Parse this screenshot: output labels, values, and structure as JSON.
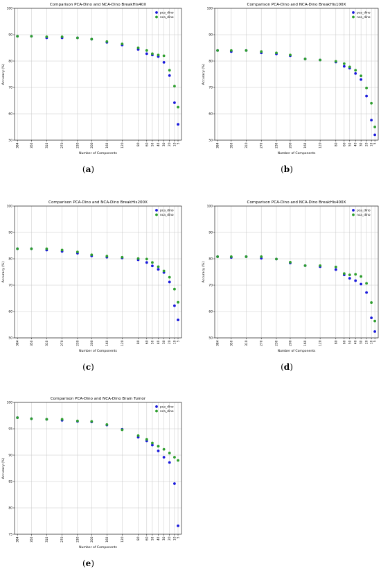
{
  "colors": {
    "pca": "#1a1adb",
    "nca": "#2e9e2e",
    "grid": "#c8c8c8",
    "axis": "#000000"
  },
  "legend_labels": [
    "pca_dino",
    "nca_dino"
  ],
  "chart_data": [
    {
      "type": "scatter",
      "title": "Comparison PCA-Dino and NCA-Dino BreakHis40X",
      "xlabel": "Number of Components",
      "ylabel": "Accuracy (%)",
      "caption_label": "a",
      "ylim": [
        50,
        100
      ],
      "yticks": [
        50,
        60,
        70,
        80,
        90,
        100
      ],
      "x": [
        "384",
        "350",
        "310",
        "270",
        "230",
        "200",
        "160",
        "120",
        "80",
        "60",
        "50",
        "40",
        "30",
        "20",
        "10",
        "5"
      ],
      "grid": true,
      "legend": "top-right",
      "series": [
        {
          "name": "pca_dino",
          "values": [
            89.4,
            89.4,
            88.8,
            88.8,
            88.8,
            88.3,
            87.1,
            86.1,
            84.4,
            82.8,
            82.3,
            81.7,
            79.5,
            74.5,
            64.2,
            56.0
          ]
        },
        {
          "name": "nca_dino",
          "values": [
            89.4,
            89.4,
            89.2,
            89.2,
            88.8,
            88.3,
            87.4,
            86.5,
            85.0,
            84.0,
            82.8,
            82.3,
            82.0,
            76.5,
            70.5,
            62.5
          ]
        }
      ]
    },
    {
      "type": "scatter",
      "title": "Comparison PCA-Dino and NCA-Dino BreakHis100X",
      "xlabel": "Number of Components",
      "ylabel": "Accuracy (%)",
      "caption_label": "b",
      "ylim": [
        50,
        100
      ],
      "yticks": [
        50,
        60,
        70,
        80,
        90,
        100
      ],
      "x": [
        "384",
        "350",
        "310",
        "270",
        "230",
        "200",
        "160",
        "120",
        "80",
        "60",
        "50",
        "40",
        "30",
        "20",
        "10",
        "5"
      ],
      "grid": true,
      "legend": "top-right",
      "series": [
        {
          "name": "pca_dino",
          "values": [
            84.0,
            83.6,
            84.0,
            83.1,
            82.7,
            82.0,
            80.8,
            80.4,
            79.6,
            78.0,
            77.3,
            75.3,
            73.0,
            66.7,
            57.6,
            52.0
          ]
        },
        {
          "name": "nca_dino",
          "values": [
            84.0,
            84.0,
            84.0,
            83.6,
            83.1,
            82.3,
            80.8,
            80.4,
            79.9,
            79.0,
            77.8,
            76.5,
            74.4,
            69.8,
            64.0,
            55.0
          ]
        }
      ]
    },
    {
      "type": "scatter",
      "title": "Comparison PCA-Dino and NCA-Dino BreakHis200X",
      "xlabel": "Number of Components",
      "ylabel": "Accuracy (%)",
      "caption_label": "c",
      "ylim": [
        50,
        100
      ],
      "yticks": [
        50,
        60,
        70,
        80,
        90,
        100
      ],
      "x": [
        "384",
        "350",
        "310",
        "270",
        "230",
        "200",
        "160",
        "120",
        "80",
        "60",
        "50",
        "40",
        "30",
        "20",
        "10",
        "5"
      ],
      "grid": true,
      "legend": "top-right",
      "series": [
        {
          "name": "pca_dino",
          "values": [
            83.8,
            83.8,
            83.3,
            82.8,
            82.1,
            81.1,
            80.6,
            80.3,
            79.6,
            78.6,
            77.3,
            76.0,
            74.8,
            71.2,
            62.2,
            56.8
          ]
        },
        {
          "name": "nca_dino",
          "values": [
            83.8,
            83.8,
            83.8,
            83.3,
            82.6,
            81.5,
            81.0,
            80.6,
            80.1,
            79.9,
            78.6,
            77.0,
            75.4,
            73.0,
            68.5,
            63.5
          ]
        }
      ]
    },
    {
      "type": "scatter",
      "title": "Comparison PCA-Dino and NCA-Dino BreakHis400X",
      "xlabel": "Number of Components",
      "ylabel": "Accuracy (%)",
      "caption_label": "d",
      "ylim": [
        50,
        100
      ],
      "yticks": [
        50,
        60,
        70,
        80,
        90,
        100
      ],
      "x": [
        "384",
        "350",
        "310",
        "270",
        "230",
        "200",
        "160",
        "120",
        "80",
        "60",
        "50",
        "40",
        "30",
        "20",
        "10",
        "5"
      ],
      "grid": true,
      "legend": "top-right",
      "series": [
        {
          "name": "pca_dino",
          "values": [
            80.8,
            80.5,
            80.8,
            80.2,
            79.9,
            78.4,
            77.4,
            77.0,
            75.9,
            73.9,
            72.6,
            71.7,
            70.4,
            67.2,
            57.6,
            52.4
          ]
        },
        {
          "name": "nca_dino",
          "values": [
            80.8,
            80.8,
            80.8,
            80.8,
            79.9,
            78.7,
            77.4,
            77.4,
            76.9,
            74.4,
            73.9,
            74.1,
            73.3,
            70.7,
            63.4,
            56.4
          ]
        }
      ]
    },
    {
      "type": "scatter",
      "title": "Comparison PCA-Dino and NCA-Dino Brain Tumor",
      "xlabel": "Number of Components",
      "ylabel": "Accuracy (%)",
      "caption_label": "e",
      "ylim": [
        75,
        100
      ],
      "yticks": [
        75,
        80,
        85,
        90,
        95,
        100
      ],
      "x": [
        "384",
        "350",
        "310",
        "270",
        "230",
        "200",
        "160",
        "120",
        "80",
        "60",
        "50",
        "40",
        "30",
        "20",
        "10",
        "5"
      ],
      "grid": true,
      "legend": "top-right",
      "series": [
        {
          "name": "pca_dino",
          "values": [
            97.1,
            96.9,
            96.8,
            96.6,
            96.4,
            96.3,
            95.7,
            94.9,
            93.4,
            92.7,
            91.9,
            90.8,
            89.6,
            88.6,
            84.6,
            76.6
          ]
        },
        {
          "name": "nca_dino",
          "values": [
            97.1,
            96.9,
            96.8,
            96.8,
            96.5,
            96.4,
            95.8,
            94.8,
            93.7,
            93.0,
            92.3,
            91.7,
            91.1,
            90.4,
            89.6,
            89.0
          ]
        }
      ]
    }
  ]
}
